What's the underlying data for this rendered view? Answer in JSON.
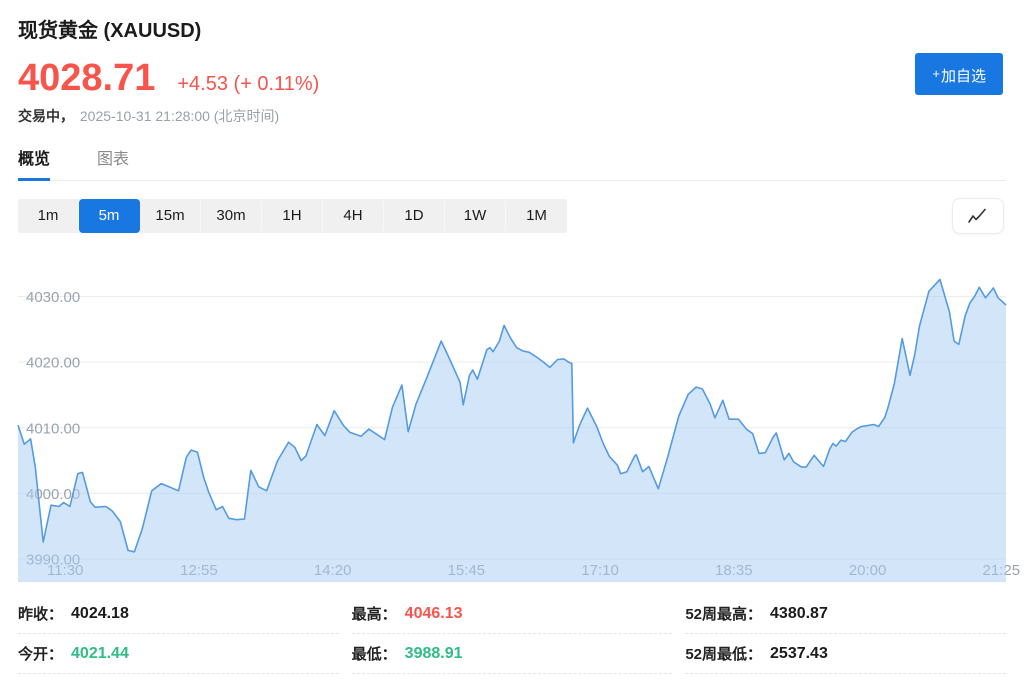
{
  "colors": {
    "accent": "#1877e0",
    "up_red": "#f8544b",
    "down_green": "#2ebd85",
    "chart_line": "#549be0",
    "chart_fill": "rgba(168,206,243,0.5)",
    "grid_line": "#ececec",
    "tick_text": "#9aa3ad"
  },
  "header": {
    "title": "现货黄金 (XAUUSD)",
    "price": "4028.71",
    "change": "+4.53 (+ 0.11%)",
    "status": "交易中，",
    "timestamp": "2025-10-31 21:28:00 (北京时间)",
    "add_watchlist_plus": "+",
    "add_watchlist_label": "加自选"
  },
  "tabs": [
    {
      "key": "overview",
      "label": "概览",
      "active": true
    },
    {
      "key": "chart",
      "label": "图表",
      "active": false
    }
  ],
  "intervals": [
    {
      "label": "1m",
      "active": false
    },
    {
      "label": "5m",
      "active": true
    },
    {
      "label": "15m",
      "active": false
    },
    {
      "label": "30m",
      "active": false
    },
    {
      "label": "1H",
      "active": false
    },
    {
      "label": "4H",
      "active": false
    },
    {
      "label": "1D",
      "active": false
    },
    {
      "label": "1W",
      "active": false
    },
    {
      "label": "1M",
      "active": false
    }
  ],
  "stats": [
    {
      "key": "prev-close",
      "label": "昨收：",
      "value": "4024.18",
      "tone": "neutral"
    },
    {
      "key": "high",
      "label": "最高：",
      "value": "4046.13",
      "tone": "up"
    },
    {
      "key": "wk52-high",
      "label": "52周最高：",
      "value": "4380.87",
      "tone": "neutral"
    },
    {
      "key": "open",
      "label": "今开：",
      "value": "4021.44",
      "tone": "down"
    },
    {
      "key": "low",
      "label": "最低：",
      "value": "3988.91",
      "tone": "down"
    },
    {
      "key": "wk52-low",
      "label": "52周最低：",
      "value": "2537.43",
      "tone": "neutral"
    }
  ],
  "chart_data": {
    "type": "area",
    "interval": "5m",
    "x_start": "11:00",
    "x_end": "21:28",
    "x_ticks": [
      "11:30",
      "12:55",
      "14:20",
      "15:45",
      "17:10",
      "18:35",
      "20:00",
      "21:25"
    ],
    "y_ticks": [
      4030,
      4020,
      4010,
      4000,
      3990
    ],
    "ylim": [
      3986.5,
      4038
    ],
    "grid": "horizontal",
    "legend": "none",
    "series": [
      {
        "name": "XAUUSD",
        "points": [
          [
            "11:00",
            4010.4
          ],
          [
            "11:04",
            4007.5
          ],
          [
            "11:08",
            4008.3
          ],
          [
            "11:11",
            4004.0
          ],
          [
            "11:16",
            3992.6
          ],
          [
            "11:21",
            3998.2
          ],
          [
            "11:26",
            3998.0
          ],
          [
            "11:29",
            3998.6
          ],
          [
            "11:33",
            3998.0
          ],
          [
            "11:38",
            4003.0
          ],
          [
            "11:41",
            4003.2
          ],
          [
            "11:46",
            3998.7
          ],
          [
            "11:49",
            3997.9
          ],
          [
            "11:56",
            3998.0
          ],
          [
            "12:00",
            3997.3
          ],
          [
            "12:05",
            3995.7
          ],
          [
            "12:10",
            3991.3
          ],
          [
            "12:14",
            3991.1
          ],
          [
            "12:19",
            3994.6
          ],
          [
            "12:25",
            4000.4
          ],
          [
            "12:31",
            4001.5
          ],
          [
            "12:36",
            4001.0
          ],
          [
            "12:42",
            4000.4
          ],
          [
            "12:47",
            4005.5
          ],
          [
            "12:50",
            4006.6
          ],
          [
            "12:54",
            4006.3
          ],
          [
            "12:58",
            4002.5
          ],
          [
            "13:01",
            4000.3
          ],
          [
            "13:06",
            3997.5
          ],
          [
            "13:10",
            3998.0
          ],
          [
            "13:14",
            3996.2
          ],
          [
            "13:19",
            3996.0
          ],
          [
            "13:24",
            3996.1
          ],
          [
            "13:28",
            4003.5
          ],
          [
            "13:33",
            4001.0
          ],
          [
            "13:38",
            4000.4
          ],
          [
            "13:45",
            4005.0
          ],
          [
            "13:52",
            4007.8
          ],
          [
            "13:56",
            4007.0
          ],
          [
            "14:00",
            4005.0
          ],
          [
            "14:03",
            4005.7
          ],
          [
            "14:10",
            4010.5
          ],
          [
            "14:15",
            4008.8
          ],
          [
            "14:21",
            4012.6
          ],
          [
            "14:27",
            4010.3
          ],
          [
            "14:31",
            4009.3
          ],
          [
            "14:38",
            4008.7
          ],
          [
            "14:43",
            4009.8
          ],
          [
            "14:48",
            4009.0
          ],
          [
            "14:53",
            4008.2
          ],
          [
            "14:58",
            4013.1
          ],
          [
            "15:04",
            4016.5
          ],
          [
            "15:08",
            4009.4
          ],
          [
            "15:13",
            4013.6
          ],
          [
            "15:20",
            4017.7
          ],
          [
            "15:29",
            4023.2
          ],
          [
            "15:32",
            4021.7
          ],
          [
            "15:36",
            4019.6
          ],
          [
            "15:41",
            4016.9
          ],
          [
            "15:43",
            4013.5
          ],
          [
            "15:47",
            4018.0
          ],
          [
            "15:49",
            4018.8
          ],
          [
            "15:52",
            4017.4
          ],
          [
            "15:58",
            4021.9
          ],
          [
            "16:00",
            4022.2
          ],
          [
            "16:02",
            4021.6
          ],
          [
            "16:06",
            4023.2
          ],
          [
            "16:09",
            4025.6
          ],
          [
            "16:13",
            4023.7
          ],
          [
            "16:17",
            4022.2
          ],
          [
            "16:21",
            4021.7
          ],
          [
            "16:25",
            4021.5
          ],
          [
            "16:30",
            4020.7
          ],
          [
            "16:34",
            4020.0
          ],
          [
            "16:38",
            4019.2
          ],
          [
            "16:43",
            4020.4
          ],
          [
            "16:47",
            4020.5
          ],
          [
            "16:50",
            4020.0
          ],
          [
            "16:52",
            4019.8
          ],
          [
            "16:53",
            4007.7
          ],
          [
            "16:57",
            4010.4
          ],
          [
            "17:02",
            4013.0
          ],
          [
            "17:08",
            4010.1
          ],
          [
            "17:12",
            4007.6
          ],
          [
            "17:16",
            4005.6
          ],
          [
            "17:21",
            4004.3
          ],
          [
            "17:23",
            4003.0
          ],
          [
            "17:27",
            4003.3
          ],
          [
            "17:32",
            4005.7
          ],
          [
            "17:33",
            4005.9
          ],
          [
            "17:37",
            4003.3
          ],
          [
            "17:41",
            4004.1
          ],
          [
            "17:47",
            4000.7
          ],
          [
            "17:53",
            4005.6
          ],
          [
            "18:00",
            4011.8
          ],
          [
            "18:06",
            4015.1
          ],
          [
            "18:11",
            4016.2
          ],
          [
            "18:15",
            4015.9
          ],
          [
            "18:20",
            4013.6
          ],
          [
            "18:23",
            4011.5
          ],
          [
            "18:28",
            4014.2
          ],
          [
            "18:32",
            4011.3
          ],
          [
            "18:38",
            4011.3
          ],
          [
            "18:43",
            4009.8
          ],
          [
            "18:47",
            4009.1
          ],
          [
            "18:51",
            4006.1
          ],
          [
            "18:55",
            4006.2
          ],
          [
            "19:00",
            4008.6
          ],
          [
            "19:02",
            4009.2
          ],
          [
            "19:07",
            4005.1
          ],
          [
            "19:10",
            4006.1
          ],
          [
            "19:13",
            4004.8
          ],
          [
            "19:18",
            4004.0
          ],
          [
            "19:21",
            4004.0
          ],
          [
            "19:26",
            4005.8
          ],
          [
            "19:32",
            4004.1
          ],
          [
            "19:36",
            4006.8
          ],
          [
            "19:38",
            4007.6
          ],
          [
            "19:40",
            4007.2
          ],
          [
            "19:43",
            4008.1
          ],
          [
            "19:46",
            4007.9
          ],
          [
            "19:50",
            4009.3
          ],
          [
            "19:53",
            4009.8
          ],
          [
            "19:56",
            4010.2
          ],
          [
            "19:59",
            4010.3
          ],
          [
            "20:04",
            4010.5
          ],
          [
            "20:07",
            4010.2
          ],
          [
            "20:11",
            4011.6
          ],
          [
            "20:13",
            4013.1
          ],
          [
            "20:17",
            4016.7
          ],
          [
            "20:22",
            4023.6
          ],
          [
            "20:27",
            4018.0
          ],
          [
            "20:30",
            4021.2
          ],
          [
            "20:33",
            4025.5
          ],
          [
            "20:39",
            4030.8
          ],
          [
            "20:46",
            4032.6
          ],
          [
            "20:52",
            4027.7
          ],
          [
            "20:55",
            4023.2
          ],
          [
            "20:58",
            4022.7
          ],
          [
            "21:02",
            4027.0
          ],
          [
            "21:05",
            4029.0
          ],
          [
            "21:08",
            4030.0
          ],
          [
            "21:11",
            4031.4
          ],
          [
            "21:15",
            4029.8
          ],
          [
            "21:20",
            4031.3
          ],
          [
            "21:23",
            4029.8
          ],
          [
            "21:28",
            4028.71
          ]
        ]
      }
    ]
  }
}
